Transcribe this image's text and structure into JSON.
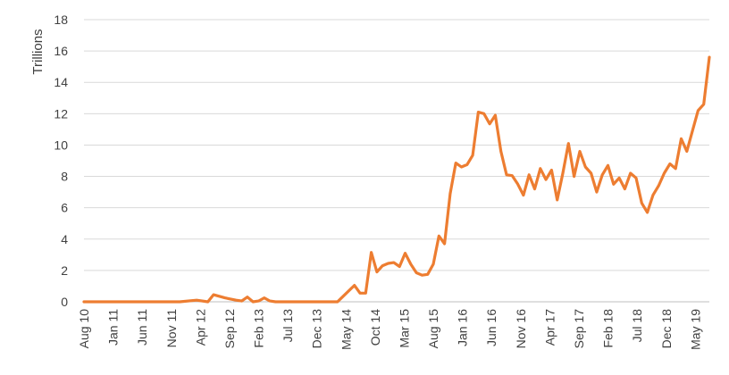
{
  "chart_data": {
    "type": "line",
    "title": "",
    "xlabel": "",
    "ylabel": "Trillions",
    "ylim": [
      0,
      18
    ],
    "yticks": [
      0,
      2,
      4,
      6,
      8,
      10,
      12,
      14,
      16,
      18
    ],
    "grid": true,
    "legend": "none",
    "colors": {
      "series": "#ED7D31",
      "grid": "#D9D9D9",
      "text": "#404040"
    },
    "x_tick_labels": [
      "Aug 10",
      "Jan 11",
      "Jun 11",
      "Nov 11",
      "Apr 12",
      "Sep 12",
      "Feb 13",
      "Jul 13",
      "Dec 13",
      "May 14",
      "Oct 14",
      "Mar 15",
      "Aug 15",
      "Jan 16",
      "Jun 16",
      "Nov 16",
      "Apr 17",
      "Sep 17",
      "Feb 18",
      "Jul 18",
      "Dec 18",
      "May 19"
    ],
    "series": [
      {
        "values": [
          [
            "2010-08",
            0.0
          ],
          [
            "2012-01",
            0.0
          ],
          [
            "2012-04",
            0.1
          ],
          [
            "2012-06",
            0.0
          ],
          [
            "2012-07",
            0.45
          ],
          [
            "2012-09",
            0.25
          ],
          [
            "2012-11",
            0.1
          ],
          [
            "2012-12",
            0.05
          ],
          [
            "2013-01",
            0.3
          ],
          [
            "2013-02",
            0.0
          ],
          [
            "2013-03",
            0.05
          ],
          [
            "2013-04",
            0.25
          ],
          [
            "2013-05",
            0.05
          ],
          [
            "2013-06",
            0.0
          ],
          [
            "2014-05",
            0.0
          ],
          [
            "2014-08",
            1.05
          ],
          [
            "2014-09",
            0.55
          ],
          [
            "2014-10",
            0.55
          ],
          [
            "2014-11",
            3.15
          ],
          [
            "2014-12",
            1.9
          ],
          [
            "2015-01",
            2.3
          ],
          [
            "2015-02",
            2.45
          ],
          [
            "2015-03",
            2.5
          ],
          [
            "2015-04",
            2.25
          ],
          [
            "2015-05",
            3.1
          ],
          [
            "2015-06",
            2.4
          ],
          [
            "2015-07",
            1.85
          ],
          [
            "2015-08",
            1.7
          ],
          [
            "2015-09",
            1.75
          ],
          [
            "2015-10",
            2.4
          ],
          [
            "2015-11",
            4.2
          ],
          [
            "2015-12",
            3.7
          ],
          [
            "2016-01",
            6.9
          ],
          [
            "2016-02",
            8.85
          ],
          [
            "2016-03",
            8.6
          ],
          [
            "2016-04",
            8.75
          ],
          [
            "2016-05",
            9.35
          ],
          [
            "2016-06",
            12.1
          ],
          [
            "2016-07",
            12.0
          ],
          [
            "2016-08",
            11.35
          ],
          [
            "2016-09",
            11.9
          ],
          [
            "2016-10",
            9.6
          ],
          [
            "2016-11",
            8.1
          ],
          [
            "2016-12",
            8.05
          ],
          [
            "2017-01",
            7.5
          ],
          [
            "2017-02",
            6.8
          ],
          [
            "2017-03",
            8.1
          ],
          [
            "2017-04",
            7.2
          ],
          [
            "2017-05",
            8.5
          ],
          [
            "2017-06",
            7.8
          ],
          [
            "2017-07",
            8.4
          ],
          [
            "2017-08",
            6.5
          ],
          [
            "2017-09",
            8.2
          ],
          [
            "2017-10",
            10.1
          ],
          [
            "2017-11",
            8.0
          ],
          [
            "2017-12",
            9.6
          ],
          [
            "2018-01",
            8.6
          ],
          [
            "2018-02",
            8.2
          ],
          [
            "2018-03",
            7.0
          ],
          [
            "2018-04",
            8.1
          ],
          [
            "2018-05",
            8.7
          ],
          [
            "2018-06",
            7.5
          ],
          [
            "2018-07",
            7.9
          ],
          [
            "2018-08",
            7.2
          ],
          [
            "2018-09",
            8.2
          ],
          [
            "2018-10",
            7.9
          ],
          [
            "2018-11",
            6.3
          ],
          [
            "2018-12",
            5.7
          ],
          [
            "2019-01",
            6.8
          ],
          [
            "2019-02",
            7.4
          ],
          [
            "2019-03",
            8.2
          ],
          [
            "2019-04",
            8.8
          ],
          [
            "2019-05",
            8.5
          ],
          [
            "2019-06",
            10.4
          ],
          [
            "2019-07",
            9.6
          ],
          [
            "2019-08",
            10.9
          ],
          [
            "2019-09",
            12.2
          ],
          [
            "2019-10",
            12.6
          ],
          [
            "2019-11",
            15.6
          ]
        ]
      }
    ]
  }
}
